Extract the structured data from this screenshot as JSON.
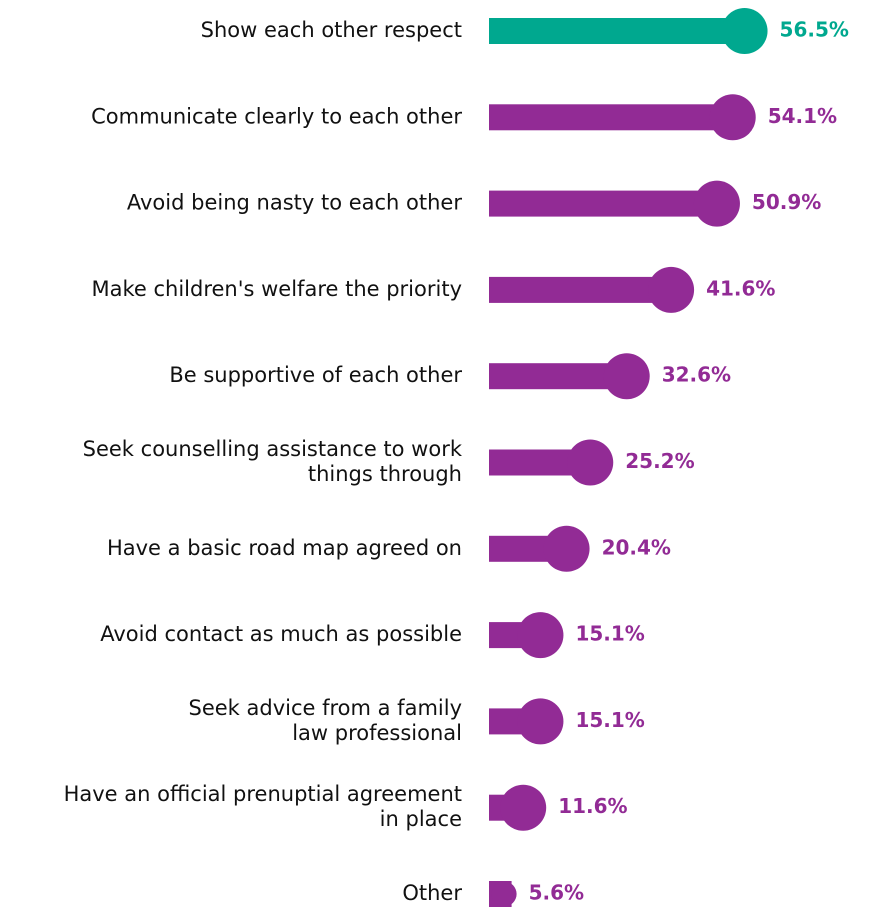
{
  "chart_data": {
    "type": "bar",
    "orientation": "horizontal",
    "style": "lollipop",
    "categories": [
      [
        "Show each other respect"
      ],
      [
        "Communicate clearly to each other"
      ],
      [
        "Avoid being nasty to each other"
      ],
      [
        "Make children's welfare the priority"
      ],
      [
        "Be supportive of each other"
      ],
      [
        "Seek counselling assistance to work",
        "things through"
      ],
      [
        "Have a basic road map agreed on"
      ],
      [
        "Avoid contact as much as possible"
      ],
      [
        "Seek advice from a family",
        "law professional"
      ],
      [
        "Have an official prenuptial agreement",
        "in place"
      ],
      [
        "Other"
      ]
    ],
    "values": [
      56.5,
      54.1,
      50.9,
      41.6,
      32.6,
      25.2,
      20.4,
      15.1,
      15.1,
      11.6,
      5.6
    ],
    "value_labels": [
      "56.5%",
      "54.1%",
      "50.9%",
      "41.6%",
      "32.6%",
      "25.2%",
      "20.4%",
      "15.1%",
      "15.1%",
      "11.6%",
      "5.6%"
    ],
    "highlight_index": 0,
    "colors": {
      "highlight": "#00a88f",
      "default": "#922b95"
    },
    "xlim": [
      0,
      60
    ],
    "grid": false,
    "legend": "none"
  }
}
